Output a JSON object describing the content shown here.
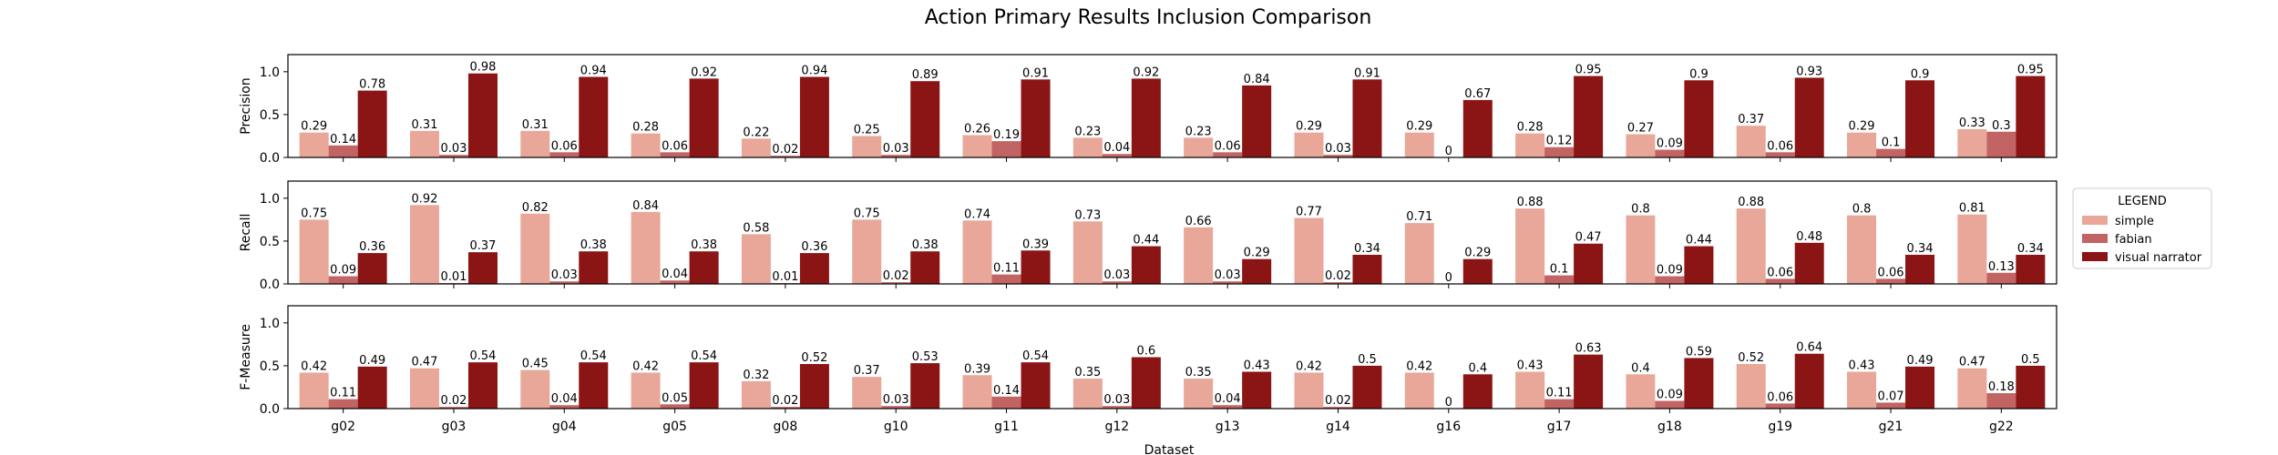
{
  "chart_data": {
    "type": "bar",
    "title": "Action Primary Results Inclusion Comparison",
    "xlabel": "Dataset",
    "categories": [
      "g02",
      "g03",
      "g04",
      "g05",
      "g08",
      "g10",
      "g11",
      "g12",
      "g13",
      "g14",
      "g16",
      "g17",
      "g18",
      "g19",
      "g21",
      "g22"
    ],
    "ylim": [
      0,
      1.2
    ],
    "yticks": [
      "0.0",
      "0.5",
      "1.0"
    ],
    "grid": false,
    "legend": {
      "title": "LEGEND",
      "placement": "right",
      "entries": [
        "simple",
        "fabian",
        "visual narrator"
      ]
    },
    "colors": {
      "simple": "#e8a799",
      "fabian": "#c26464",
      "visual narrator": "#8b1414"
    },
    "panels": [
      {
        "ylabel": "Precision",
        "series": [
          {
            "name": "simple",
            "values": [
              0.29,
              0.31,
              0.31,
              0.28,
              0.22,
              0.25,
              0.26,
              0.23,
              0.23,
              0.29,
              0.29,
              0.28,
              0.27,
              0.37,
              0.29,
              0.33
            ]
          },
          {
            "name": "fabian",
            "values": [
              0.14,
              0.03,
              0.06,
              0.06,
              0.02,
              0.03,
              0.19,
              0.04,
              0.06,
              0.03,
              0,
              0.12,
              0.09,
              0.06,
              0.1,
              0.3
            ]
          },
          {
            "name": "visual narrator",
            "values": [
              0.78,
              0.98,
              0.94,
              0.92,
              0.94,
              0.89,
              0.91,
              0.92,
              0.84,
              0.91,
              0.67,
              0.95,
              0.9,
              0.93,
              0.9,
              0.95
            ]
          }
        ]
      },
      {
        "ylabel": "Recall",
        "series": [
          {
            "name": "simple",
            "values": [
              0.75,
              0.92,
              0.82,
              0.84,
              0.58,
              0.75,
              0.74,
              0.73,
              0.66,
              0.77,
              0.71,
              0.88,
              0.8,
              0.88,
              0.8,
              0.81
            ]
          },
          {
            "name": "fabian",
            "values": [
              0.09,
              0.01,
              0.03,
              0.04,
              0.01,
              0.02,
              0.11,
              0.03,
              0.03,
              0.02,
              0,
              0.1,
              0.09,
              0.06,
              0.06,
              0.13
            ]
          },
          {
            "name": "visual narrator",
            "values": [
              0.36,
              0.37,
              0.38,
              0.38,
              0.36,
              0.38,
              0.39,
              0.44,
              0.29,
              0.34,
              0.29,
              0.47,
              0.44,
              0.48,
              0.34,
              0.34
            ]
          }
        ]
      },
      {
        "ylabel": "F-Measure",
        "series": [
          {
            "name": "simple",
            "values": [
              0.42,
              0.47,
              0.45,
              0.42,
              0.32,
              0.37,
              0.39,
              0.35,
              0.35,
              0.42,
              0.42,
              0.43,
              0.4,
              0.52,
              0.43,
              0.47
            ]
          },
          {
            "name": "fabian",
            "values": [
              0.11,
              0.02,
              0.04,
              0.05,
              0.02,
              0.03,
              0.14,
              0.03,
              0.04,
              0.02,
              0,
              0.11,
              0.09,
              0.06,
              0.07,
              0.18
            ]
          },
          {
            "name": "visual narrator",
            "values": [
              0.49,
              0.54,
              0.54,
              0.54,
              0.52,
              0.53,
              0.54,
              0.6,
              0.43,
              0.5,
              0.4,
              0.63,
              0.59,
              0.64,
              0.49,
              0.5
            ]
          }
        ]
      }
    ]
  }
}
